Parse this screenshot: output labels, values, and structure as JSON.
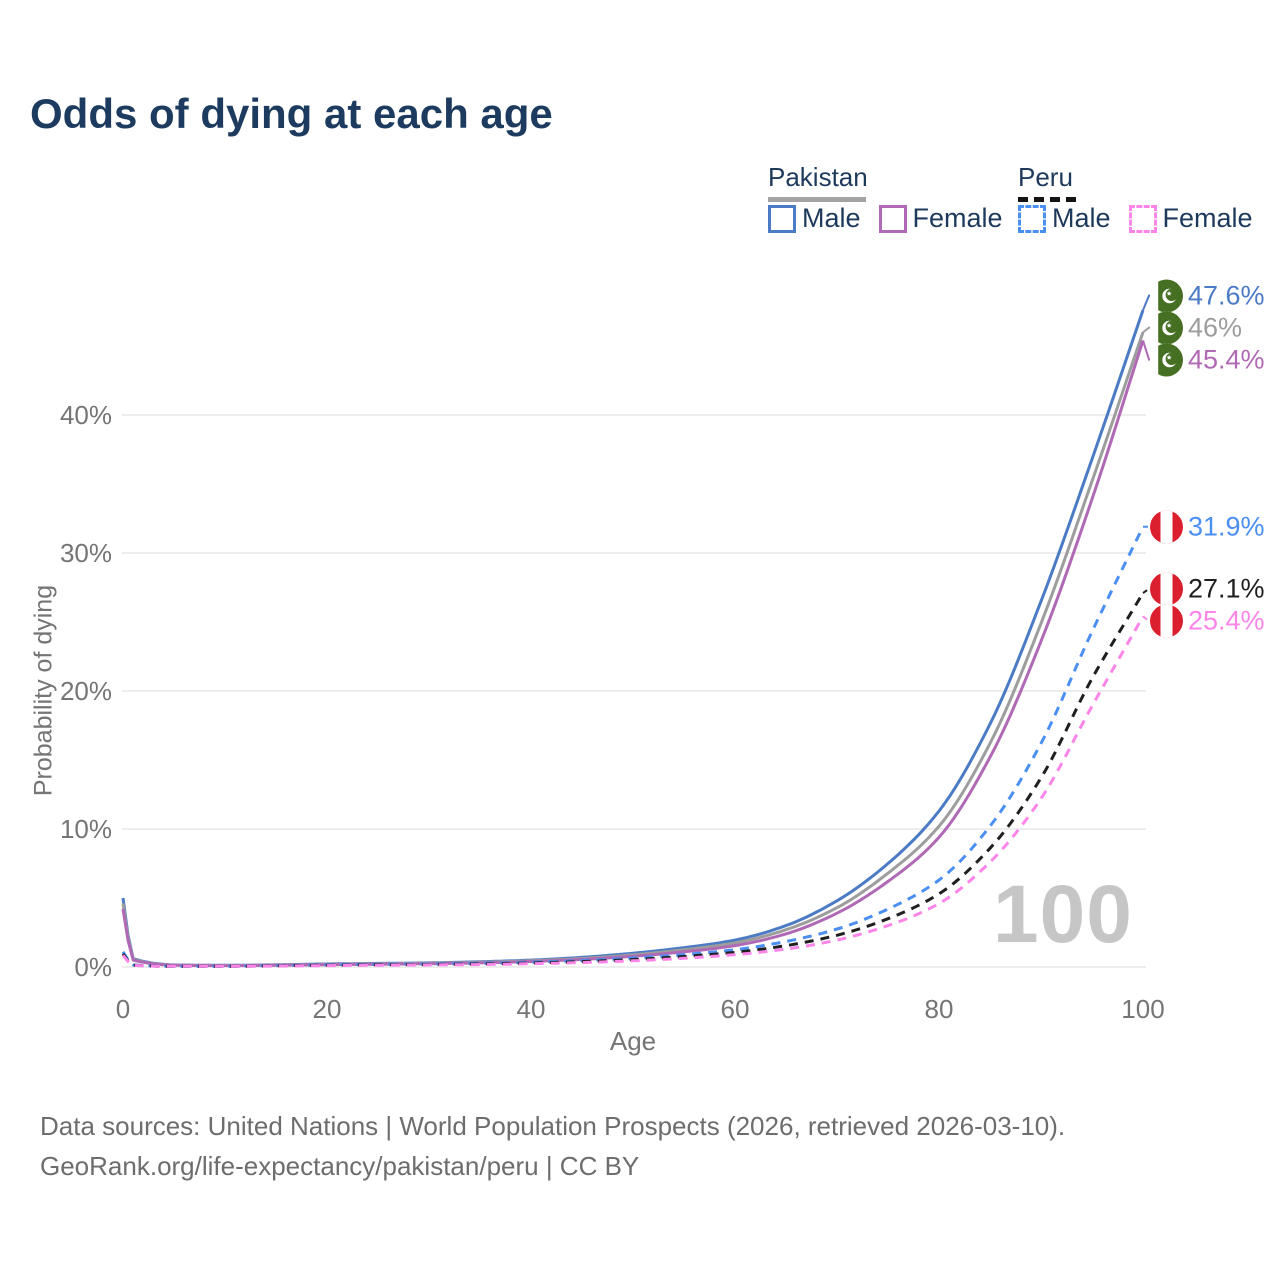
{
  "header": {
    "title": "Odds of dying at each age"
  },
  "legend": {
    "groups": [
      {
        "country": "Pakistan",
        "line_style": "solid",
        "items": [
          {
            "label": "Male",
            "series": 0
          },
          {
            "label": "Female",
            "series": 2
          }
        ]
      },
      {
        "country": "Peru",
        "line_style": "dashed",
        "items": [
          {
            "label": "Male",
            "series": 3
          },
          {
            "label": "Female",
            "series": 5
          }
        ]
      }
    ]
  },
  "axes": {
    "ylabel": "Probability of dying",
    "xlabel": "Age"
  },
  "chart_data": {
    "type": "line",
    "title": "Odds of dying at each age",
    "xlabel": "Age",
    "ylabel": "Probability of dying",
    "xlim": [
      0,
      100
    ],
    "ylim": [
      0,
      48
    ],
    "xticks": [
      0,
      20,
      40,
      60,
      80,
      100
    ],
    "yticks": [
      {
        "v": 0,
        "label": "0%"
      },
      {
        "v": 10,
        "label": "10%"
      },
      {
        "v": 20,
        "label": "20%"
      },
      {
        "v": 30,
        "label": "30%"
      },
      {
        "v": 40,
        "label": "40%"
      }
    ],
    "grid": "horizontal",
    "age_counter": "100",
    "x": [
      0,
      1,
      5,
      10,
      15,
      20,
      25,
      30,
      35,
      40,
      45,
      50,
      55,
      60,
      65,
      70,
      75,
      80,
      85,
      90,
      95,
      100
    ],
    "series": [
      {
        "name": "Pakistan Male",
        "country": "pakistan",
        "style": "solid",
        "color": "#4b7bc5",
        "end_label": "47.6%",
        "values": [
          5.0,
          0.6,
          0.15,
          0.12,
          0.16,
          0.22,
          0.26,
          0.3,
          0.38,
          0.5,
          0.7,
          1.0,
          1.4,
          1.95,
          3.0,
          4.8,
          7.5,
          11.3,
          17.6,
          26.5,
          36.8,
          47.6
        ]
      },
      {
        "name": "Pakistan Both sexes",
        "country": "pakistan",
        "style": "solid",
        "color": "#9d9d9d",
        "end_label": "46%",
        "values": [
          4.6,
          0.55,
          0.14,
          0.11,
          0.14,
          0.19,
          0.23,
          0.27,
          0.34,
          0.45,
          0.62,
          0.88,
          1.25,
          1.75,
          2.7,
          4.3,
          6.8,
          10.2,
          16.2,
          24.9,
          35.2,
          46.0
        ]
      },
      {
        "name": "Pakistan Female",
        "country": "pakistan",
        "style": "solid",
        "color": "#b069b5",
        "end_label": "45.4%",
        "values": [
          4.2,
          0.5,
          0.13,
          0.1,
          0.13,
          0.17,
          0.2,
          0.24,
          0.3,
          0.4,
          0.55,
          0.78,
          1.1,
          1.55,
          2.4,
          3.9,
          6.2,
          9.4,
          15.2,
          23.6,
          33.9,
          45.4
        ]
      },
      {
        "name": "Peru Male",
        "country": "peru",
        "style": "dashed",
        "color": "#4b8ff2",
        "end_label": "31.9%",
        "values": [
          1.1,
          0.15,
          0.06,
          0.06,
          0.1,
          0.16,
          0.19,
          0.22,
          0.27,
          0.35,
          0.47,
          0.65,
          0.9,
          1.25,
          1.85,
          2.75,
          4.2,
          6.3,
          10.2,
          16.2,
          24.3,
          31.9
        ]
      },
      {
        "name": "Peru Both sexes",
        "country": "peru",
        "style": "dashed",
        "color": "#1f1f1f",
        "end_label": "27.1%",
        "values": [
          0.95,
          0.13,
          0.05,
          0.05,
          0.09,
          0.13,
          0.16,
          0.18,
          0.22,
          0.29,
          0.39,
          0.54,
          0.76,
          1.06,
          1.55,
          2.3,
          3.5,
          5.3,
          8.6,
          13.7,
          20.9,
          27.1
        ]
      },
      {
        "name": "Peru Female",
        "country": "peru",
        "style": "dashed",
        "color": "#fb85e9",
        "end_label": "25.4%",
        "values": [
          0.85,
          0.12,
          0.05,
          0.05,
          0.07,
          0.1,
          0.13,
          0.15,
          0.18,
          0.24,
          0.32,
          0.45,
          0.63,
          0.9,
          1.3,
          1.95,
          3.0,
          4.6,
          7.6,
          12.2,
          18.9,
          25.4
        ]
      }
    ],
    "legend_position": "top-right"
  },
  "icons": {
    "pakistan_flag": {
      "green": "#456f23",
      "white": "#ffffff"
    },
    "peru_flag": {
      "red": "#dc1f2e",
      "white": "#ffffff"
    }
  },
  "colors": {
    "title": "#1c3b5e",
    "axis_text": "#757575",
    "gridline": "#e7e7e7",
    "footer_text": "#6d6d6d",
    "watermark": "#c6c6c6",
    "pakistan_underline": "#a3a3a3",
    "peru_underline": "#141414"
  },
  "footer": {
    "line1": "Data sources: United Nations | World Population Prospects (2026, retrieved 2026-03-10).",
    "line2": "GeoRank.org/life-expectancy/pakistan/peru | CC BY"
  }
}
